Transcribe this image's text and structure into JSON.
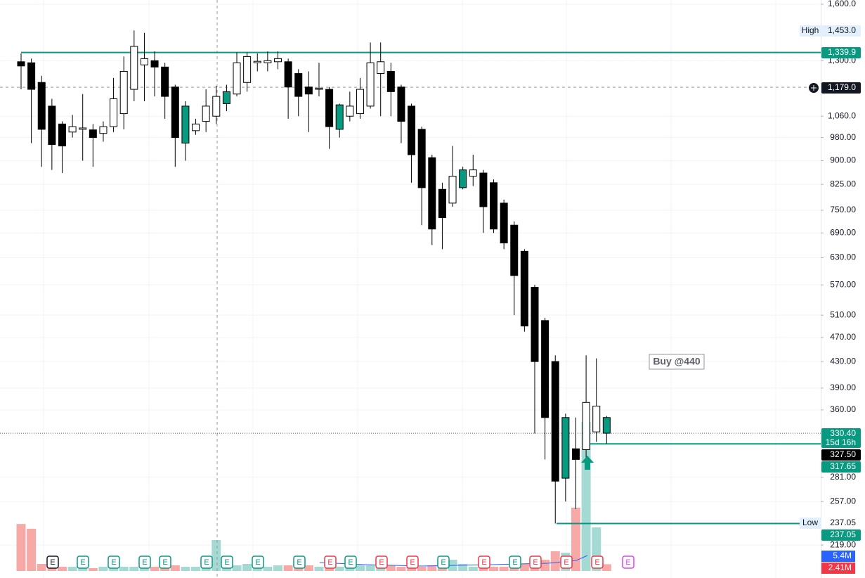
{
  "chart_data": {
    "type": "candlestick",
    "log_scale": true,
    "grid": true,
    "ylim": [
      194,
      1625
    ],
    "yticks": [
      {
        "value": 1600,
        "label": "1,600.0"
      },
      {
        "value": 1300,
        "label": "1,300.0"
      },
      {
        "value": 1060,
        "label": "1,060.0"
      },
      {
        "value": 980,
        "label": "980.00"
      },
      {
        "value": 900,
        "label": "900.00"
      },
      {
        "value": 825,
        "label": "825.00"
      },
      {
        "value": 750,
        "label": "750.00"
      },
      {
        "value": 690,
        "label": "690.00"
      },
      {
        "value": 630,
        "label": "630.00"
      },
      {
        "value": 570,
        "label": "570.00"
      },
      {
        "value": 510,
        "label": "510.00"
      },
      {
        "value": 470,
        "label": "470.00"
      },
      {
        "value": 430,
        "label": "430.00"
      },
      {
        "value": 390,
        "label": "390.00"
      },
      {
        "value": 360,
        "label": "360.00"
      },
      {
        "value": 281,
        "label": "281.00"
      },
      {
        "value": 257,
        "label": "257.00"
      },
      {
        "value": 219,
        "label": "219.00"
      }
    ],
    "open": [
      1295,
      1290,
      1200,
      1100,
      1030,
      1000,
      1010,
      1008,
      995,
      1020,
      1070,
      1170,
      1280,
      1300,
      1270,
      1180,
      960,
      1005,
      1040,
      1060,
      1110,
      1150,
      1200,
      1290,
      1290,
      1295,
      1295,
      1240,
      1180,
      1170,
      1170,
      1010,
      1060,
      1070,
      1100,
      1240,
      1250,
      1180,
      1100,
      1010,
      910,
      810,
      770,
      815,
      850,
      860,
      830,
      770,
      710,
      645,
      565,
      500,
      430,
      280,
      312,
      311,
      332,
      350
    ],
    "high": [
      1335,
      1310,
      1230,
      1130,
      1040,
      1065,
      1150,
      1030,
      1040,
      1220,
      1320,
      1453,
      1440,
      1345,
      1290,
      1190,
      1120,
      1050,
      1170,
      1185,
      1190,
      1340,
      1340,
      1335,
      1345,
      1345,
      1310,
      1260,
      1250,
      1290,
      1180,
      1110,
      1160,
      1220,
      1390,
      1390,
      1290,
      1190,
      1110,
      1020,
      920,
      830,
      950,
      880,
      920,
      870,
      840,
      780,
      720,
      650,
      570,
      505,
      440,
      355,
      350,
      440,
      435,
      352
    ],
    "low": [
      1170,
      960,
      880,
      870,
      860,
      980,
      900,
      880,
      965,
      1000,
      1010,
      1120,
      1120,
      1140,
      1050,
      880,
      900,
      990,
      1000,
      1030,
      1080,
      1140,
      1160,
      1250,
      1250,
      1260,
      1050,
      1060,
      1000,
      1140,
      940,
      980,
      1040,
      1050,
      1090,
      1060,
      1060,
      960,
      830,
      710,
      660,
      650,
      760,
      810,
      820,
      690,
      690,
      650,
      510,
      480,
      330,
      300,
      237.05,
      257,
      250,
      300,
      320,
      318
    ],
    "close": [
      1275,
      1170,
      1010,
      955,
      950,
      1020,
      1015,
      980,
      1020,
      1130,
      1250,
      1370,
      1310,
      1270,
      1140,
      980,
      1100,
      1030,
      1100,
      1140,
      1160,
      1290,
      1320,
      1297,
      1300,
      1310,
      1180,
      1140,
      1150,
      1175,
      1020,
      1105,
      1100,
      1170,
      1290,
      1295,
      1160,
      1040,
      920,
      815,
      700,
      730,
      850,
      870,
      870,
      760,
      700,
      665,
      590,
      490,
      430,
      350,
      277,
      350,
      300,
      370,
      365,
      330.4
    ],
    "colors": [
      "#000000",
      "#000000",
      "#000000",
      "#000000",
      "#000000",
      "#ffffff",
      "#ffffff",
      "#000000",
      "#ffffff",
      "#ffffff",
      "#ffffff",
      "#ffffff",
      "#ffffff",
      "#000000",
      "#000000",
      "#000000",
      "#089981",
      "#ffffff",
      "#ffffff",
      "#ffffff",
      "#089981",
      "#ffffff",
      "#ffffff",
      "#ffffff",
      "#ffffff",
      "#ffffff",
      "#000000",
      "#000000",
      "#000000",
      "#ffffff",
      "#000000",
      "#089981",
      "#ffffff",
      "#ffffff",
      "#ffffff",
      "#ffffff",
      "#000000",
      "#000000",
      "#000000",
      "#000000",
      "#000000",
      "#000000",
      "#ffffff",
      "#089981",
      "#ffffff",
      "#000000",
      "#000000",
      "#000000",
      "#000000",
      "#000000",
      "#000000",
      "#000000",
      "#000000",
      "#089981",
      "#000000",
      "#ffffff",
      "#ffffff",
      "#089981"
    ],
    "volume": {
      "values": [
        16.7,
        15,
        2.5,
        2,
        1.5,
        1.5,
        1.2,
        1,
        1.5,
        2,
        1.5,
        1.5,
        2,
        1.5,
        1.5,
        2,
        1.5,
        1.5,
        2,
        11,
        4.5,
        2,
        2.5,
        2,
        1.5,
        2,
        2,
        2,
        2,
        1.5,
        1.5,
        1.5,
        2,
        2,
        2,
        1.5,
        2,
        1.5,
        2,
        1.5,
        2,
        4,
        4,
        2.5,
        1.5,
        1.5,
        1.5,
        1.5,
        2,
        2.5,
        3,
        4,
        7,
        6.5,
        22.5,
        53,
        15.5,
        2.41
      ],
      "ylim": [
        0,
        60
      ],
      "up_color": "#a5dad4",
      "down_color": "#f7a9a7",
      "labels": [
        {
          "value": 5.4,
          "label": "5.4M",
          "color": "#2962ff"
        },
        {
          "value": 2.41,
          "label": "2.41M",
          "color": "#f23645"
        }
      ]
    },
    "price_labels": [
      {
        "value": 1453,
        "label": "1,453.0",
        "tag": "High",
        "color": "#e3effd",
        "text_color": "#131722"
      },
      {
        "value": 1339.9,
        "label": "1,339.9",
        "color": "#089981",
        "text_color": "#ffffff"
      },
      {
        "value": 1179,
        "label": "1,179.0",
        "color": "#131722",
        "text_color": "#ffffff"
      },
      {
        "value": 330.4,
        "label": "330.40",
        "sub": "15d 16h",
        "color": "#089981",
        "text_color": "#ffffff"
      },
      {
        "value": 327.5,
        "label": "327.50",
        "color": "#000000",
        "text_color": "#ffffff"
      },
      {
        "value": 317.65,
        "label": "317.65",
        "color": "#089981",
        "text_color": "#ffffff"
      },
      {
        "value": 237.05,
        "label": "237.05",
        "tag": "Low",
        "color": "#ffffff",
        "text_color": "#131722"
      },
      {
        "value": 237.05,
        "label": "237.05",
        "color": "#089981",
        "text_color": "#ffffff"
      }
    ],
    "annotation": "Buy @440",
    "earnings_label": "E"
  }
}
